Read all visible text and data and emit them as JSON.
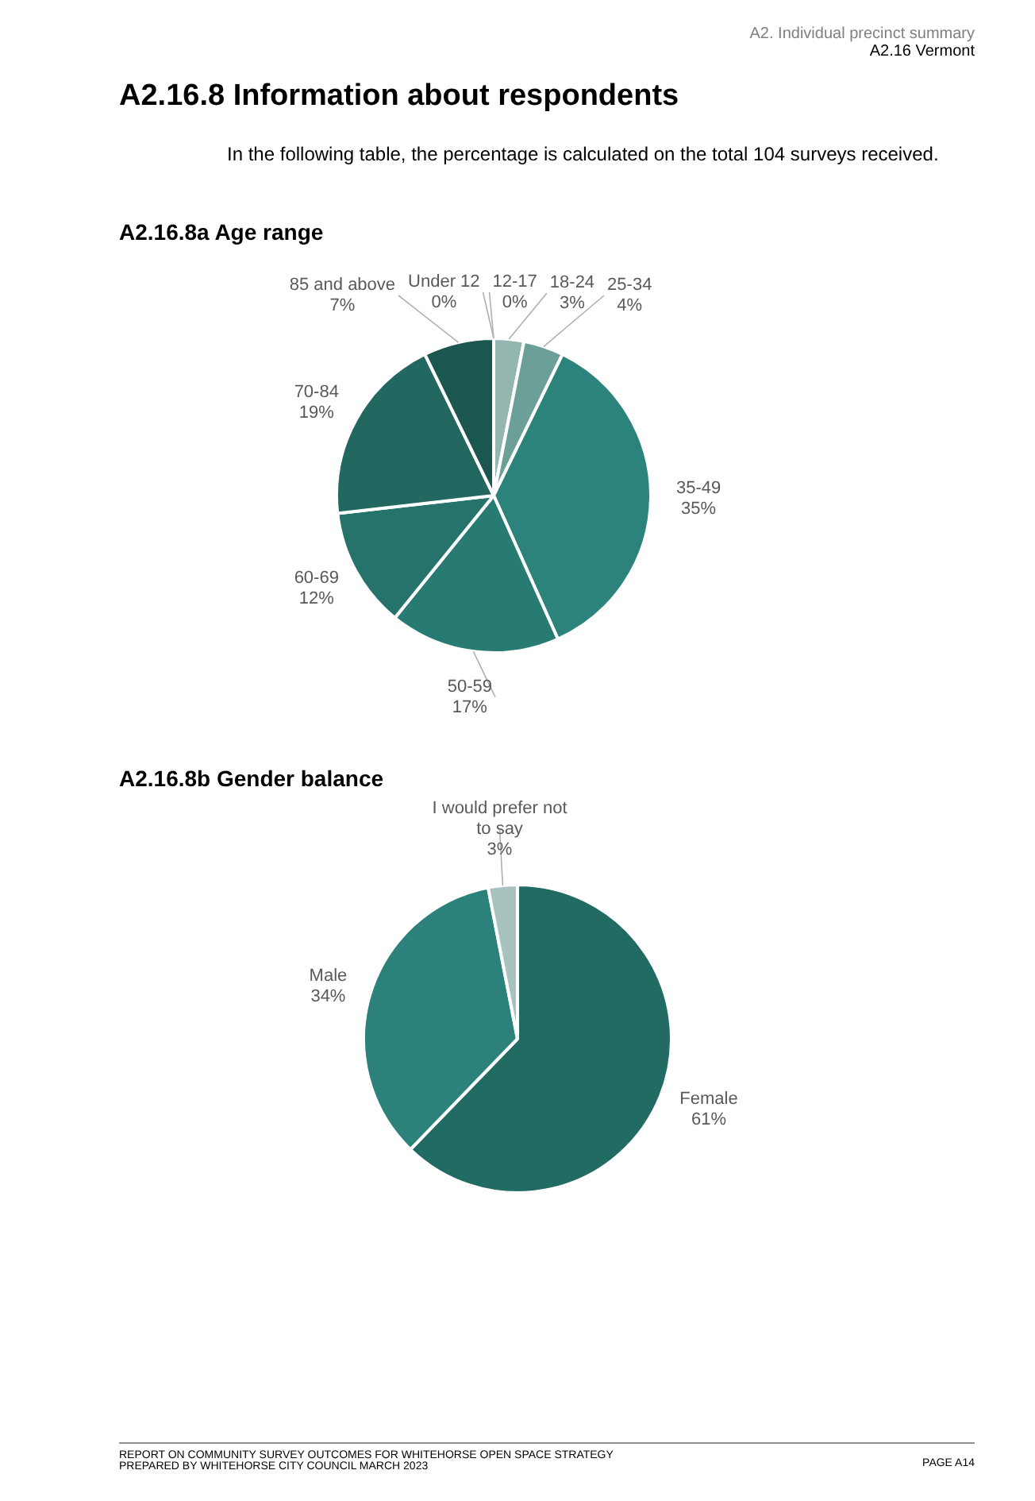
{
  "chart_data": [
    {
      "type": "pie",
      "title": "A2.16.8a    Age range",
      "annotations": [
        "A2. Individual precinct summary",
        "A2.16 Vermont",
        "A2.16.8  Information about respondents",
        "In the following table, the percentage is calculated on the total 104 surveys received."
      ],
      "categories": [
        "Under 12",
        "12-17",
        "18-24",
        "25-34",
        "35-49",
        "50-59",
        "60-69",
        "70-84",
        "85 and above"
      ],
      "values": [
        0,
        0,
        3,
        4,
        35,
        17,
        12,
        19,
        7
      ],
      "value_labels": [
        "0%",
        "0%",
        "3%",
        "4%",
        "35%",
        "17%",
        "12%",
        "19%",
        "7%"
      ],
      "colors": [
        "#c4d6d3",
        "#b0c9c5",
        "#94b6b1",
        "#6b9f98",
        "#2c837b",
        "#287b73",
        "#25736b",
        "#226860",
        "#1c5650"
      ]
    },
    {
      "type": "pie",
      "title": "A2.16.8b    Gender balance",
      "annotations": [
        "REPORT ON COMMUNITY SURVEY OUTCOMES FOR WHITEHORSE OPEN SPACE STRATEGY",
        "PREPARED BY WHITEHORSE CITY COUNCIL MARCH 2023",
        "PAGE A14"
      ],
      "categories": [
        "Female",
        "Male",
        "I would prefer not to say"
      ],
      "values": [
        61,
        34,
        3
      ],
      "value_labels": [
        "61%",
        "34%",
        "3%"
      ],
      "colors": [
        "#226b63",
        "#2c827a",
        "#a8c2bf"
      ]
    }
  ]
}
